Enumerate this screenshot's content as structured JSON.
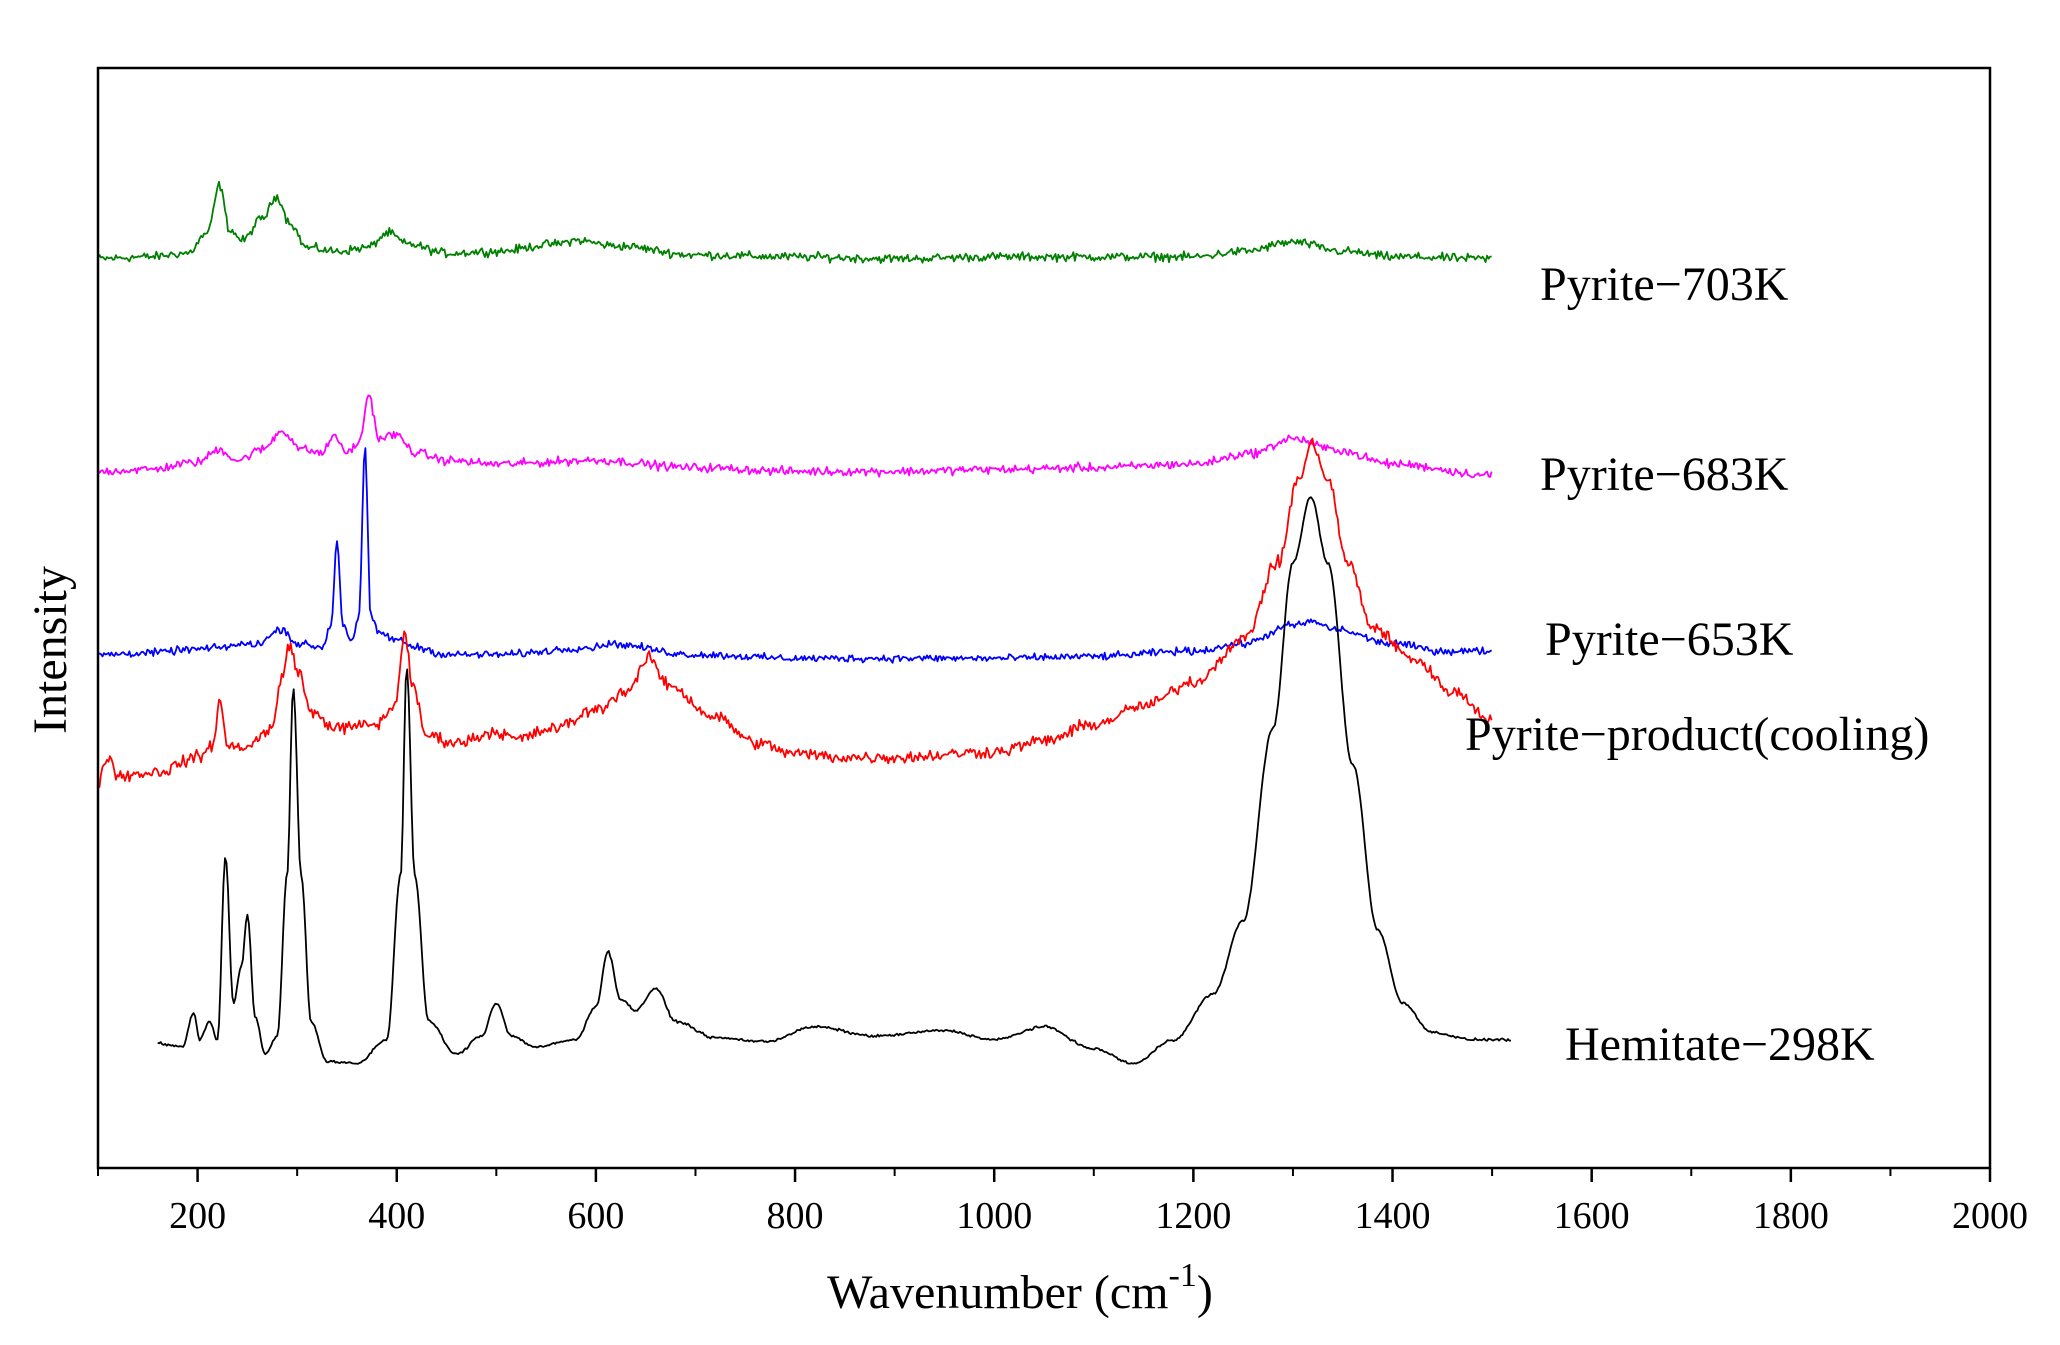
{
  "chart_data": {
    "type": "line",
    "title": "",
    "xlabel": "Wavenumber (cm",
    "xlabel_superscript": "-1",
    "xlabel_close": ")",
    "ylabel": "Intensity",
    "xlim": [
      100,
      2000
    ],
    "ylim": [
      0,
      6
    ],
    "x_ticks": [
      "200",
      "400",
      "600",
      "800",
      "1000",
      "1200",
      "1400",
      "1600",
      "1800",
      "2000"
    ],
    "y_tick_labels": false,
    "grid": false,
    "series": [
      {
        "name": "Pyrite−703K",
        "color": "#008000",
        "noise": 0.035,
        "x_range": [
          100,
          1500
        ],
        "points": [
          [
            100,
            4.96
          ],
          [
            150,
            4.97
          ],
          [
            190,
            4.99
          ],
          [
            210,
            5.1
          ],
          [
            222,
            5.36
          ],
          [
            232,
            5.12
          ],
          [
            245,
            5.06
          ],
          [
            265,
            5.18
          ],
          [
            280,
            5.3
          ],
          [
            292,
            5.16
          ],
          [
            310,
            5.02
          ],
          [
            340,
            5.0
          ],
          [
            370,
            5.02
          ],
          [
            392,
            5.1
          ],
          [
            410,
            5.04
          ],
          [
            450,
            4.99
          ],
          [
            500,
            5.0
          ],
          [
            560,
            5.04
          ],
          [
            580,
            5.06
          ],
          [
            620,
            5.03
          ],
          [
            700,
            4.98
          ],
          [
            800,
            4.97
          ],
          [
            900,
            4.96
          ],
          [
            1000,
            4.97
          ],
          [
            1100,
            4.97
          ],
          [
            1200,
            4.97
          ],
          [
            1250,
            5.0
          ],
          [
            1300,
            5.05
          ],
          [
            1350,
            5.0
          ],
          [
            1400,
            4.97
          ],
          [
            1500,
            4.96
          ]
        ]
      },
      {
        "name": "Pyrite−683K",
        "color": "#ff00ff",
        "noise": 0.035,
        "x_range": [
          100,
          1500
        ],
        "points": [
          [
            100,
            3.8
          ],
          [
            150,
            3.81
          ],
          [
            200,
            3.85
          ],
          [
            222,
            3.92
          ],
          [
            240,
            3.86
          ],
          [
            265,
            3.92
          ],
          [
            285,
            4.02
          ],
          [
            305,
            3.92
          ],
          [
            325,
            3.9
          ],
          [
            338,
            4.0
          ],
          [
            348,
            3.9
          ],
          [
            362,
            3.95
          ],
          [
            372,
            4.22
          ],
          [
            382,
            3.98
          ],
          [
            398,
            4.0
          ],
          [
            420,
            3.9
          ],
          [
            450,
            3.86
          ],
          [
            500,
            3.84
          ],
          [
            600,
            3.86
          ],
          [
            700,
            3.82
          ],
          [
            800,
            3.8
          ],
          [
            900,
            3.8
          ],
          [
            1000,
            3.81
          ],
          [
            1100,
            3.82
          ],
          [
            1200,
            3.84
          ],
          [
            1260,
            3.9
          ],
          [
            1300,
            3.98
          ],
          [
            1340,
            3.92
          ],
          [
            1400,
            3.84
          ],
          [
            1500,
            3.78
          ]
        ]
      },
      {
        "name": "Pyrite−653K",
        "color": "#0000ff",
        "noise": 0.03,
        "x_range": [
          100,
          1500
        ],
        "points": [
          [
            100,
            2.8
          ],
          [
            150,
            2.81
          ],
          [
            200,
            2.83
          ],
          [
            260,
            2.86
          ],
          [
            285,
            2.94
          ],
          [
            300,
            2.86
          ],
          [
            325,
            2.84
          ],
          [
            334,
            2.96
          ],
          [
            340,
            3.42
          ],
          [
            346,
            2.96
          ],
          [
            355,
            2.88
          ],
          [
            362,
            3.0
          ],
          [
            368,
            3.92
          ],
          [
            374,
            3.0
          ],
          [
            382,
            2.92
          ],
          [
            400,
            2.88
          ],
          [
            420,
            2.84
          ],
          [
            450,
            2.8
          ],
          [
            500,
            2.8
          ],
          [
            600,
            2.84
          ],
          [
            610,
            2.86
          ],
          [
            700,
            2.8
          ],
          [
            800,
            2.78
          ],
          [
            900,
            2.78
          ],
          [
            1000,
            2.78
          ],
          [
            1100,
            2.79
          ],
          [
            1200,
            2.82
          ],
          [
            1250,
            2.86
          ],
          [
            1300,
            2.96
          ],
          [
            1320,
            2.98
          ],
          [
            1340,
            2.94
          ],
          [
            1400,
            2.86
          ],
          [
            1450,
            2.82
          ],
          [
            1500,
            2.82
          ]
        ]
      },
      {
        "name": "Pyrite−product(cooling)",
        "color": "#ff0000",
        "noise": 0.05,
        "x_range": [
          100,
          1500
        ],
        "points": [
          [
            100,
            2.1
          ],
          [
            110,
            2.25
          ],
          [
            120,
            2.14
          ],
          [
            160,
            2.16
          ],
          [
            200,
            2.24
          ],
          [
            215,
            2.3
          ],
          [
            222,
            2.55
          ],
          [
            230,
            2.3
          ],
          [
            250,
            2.3
          ],
          [
            275,
            2.4
          ],
          [
            285,
            2.68
          ],
          [
            292,
            2.86
          ],
          [
            300,
            2.72
          ],
          [
            315,
            2.48
          ],
          [
            340,
            2.4
          ],
          [
            380,
            2.42
          ],
          [
            398,
            2.52
          ],
          [
            408,
            2.92
          ],
          [
            416,
            2.62
          ],
          [
            430,
            2.36
          ],
          [
            460,
            2.32
          ],
          [
            500,
            2.38
          ],
          [
            520,
            2.34
          ],
          [
            560,
            2.4
          ],
          [
            600,
            2.5
          ],
          [
            630,
            2.6
          ],
          [
            655,
            2.78
          ],
          [
            670,
            2.64
          ],
          [
            720,
            2.46
          ],
          [
            760,
            2.32
          ],
          [
            800,
            2.26
          ],
          [
            850,
            2.24
          ],
          [
            900,
            2.24
          ],
          [
            1000,
            2.27
          ],
          [
            1050,
            2.33
          ],
          [
            1100,
            2.42
          ],
          [
            1150,
            2.52
          ],
          [
            1200,
            2.65
          ],
          [
            1250,
            2.88
          ],
          [
            1285,
            3.3
          ],
          [
            1305,
            3.75
          ],
          [
            1320,
            3.95
          ],
          [
            1335,
            3.75
          ],
          [
            1355,
            3.3
          ],
          [
            1380,
            2.95
          ],
          [
            1420,
            2.78
          ],
          [
            1460,
            2.6
          ],
          [
            1500,
            2.45
          ]
        ]
      },
      {
        "name": "Hemitate−298K",
        "color": "#000000",
        "noise": 0.01,
        "x_range": [
          160,
          1520
        ],
        "points": [
          [
            160,
            0.68
          ],
          [
            185,
            0.66
          ],
          [
            196,
            0.85
          ],
          [
            202,
            0.7
          ],
          [
            212,
            0.8
          ],
          [
            220,
            0.7
          ],
          [
            228,
            1.7
          ],
          [
            236,
            0.9
          ],
          [
            244,
            1.1
          ],
          [
            250,
            1.38
          ],
          [
            258,
            0.82
          ],
          [
            268,
            0.62
          ],
          [
            280,
            0.72
          ],
          [
            290,
            1.6
          ],
          [
            296,
            2.62
          ],
          [
            304,
            1.6
          ],
          [
            314,
            0.8
          ],
          [
            330,
            0.58
          ],
          [
            360,
            0.57
          ],
          [
            390,
            0.7
          ],
          [
            404,
            1.6
          ],
          [
            410,
            2.73
          ],
          [
            418,
            1.6
          ],
          [
            432,
            0.8
          ],
          [
            460,
            0.62
          ],
          [
            485,
            0.72
          ],
          [
            500,
            0.9
          ],
          [
            515,
            0.72
          ],
          [
            540,
            0.66
          ],
          [
            580,
            0.7
          ],
          [
            600,
            0.88
          ],
          [
            612,
            1.18
          ],
          [
            625,
            0.92
          ],
          [
            640,
            0.86
          ],
          [
            660,
            0.98
          ],
          [
            680,
            0.8
          ],
          [
            720,
            0.71
          ],
          [
            770,
            0.69
          ],
          [
            820,
            0.77
          ],
          [
            880,
            0.72
          ],
          [
            950,
            0.75
          ],
          [
            1000,
            0.7
          ],
          [
            1050,
            0.77
          ],
          [
            1100,
            0.65
          ],
          [
            1140,
            0.57
          ],
          [
            1180,
            0.7
          ],
          [
            1220,
            0.95
          ],
          [
            1250,
            1.35
          ],
          [
            1280,
            2.4
          ],
          [
            1300,
            3.3
          ],
          [
            1318,
            3.66
          ],
          [
            1335,
            3.3
          ],
          [
            1360,
            2.2
          ],
          [
            1385,
            1.3
          ],
          [
            1410,
            0.9
          ],
          [
            1440,
            0.74
          ],
          [
            1480,
            0.7
          ],
          [
            1520,
            0.7
          ]
        ]
      }
    ]
  }
}
